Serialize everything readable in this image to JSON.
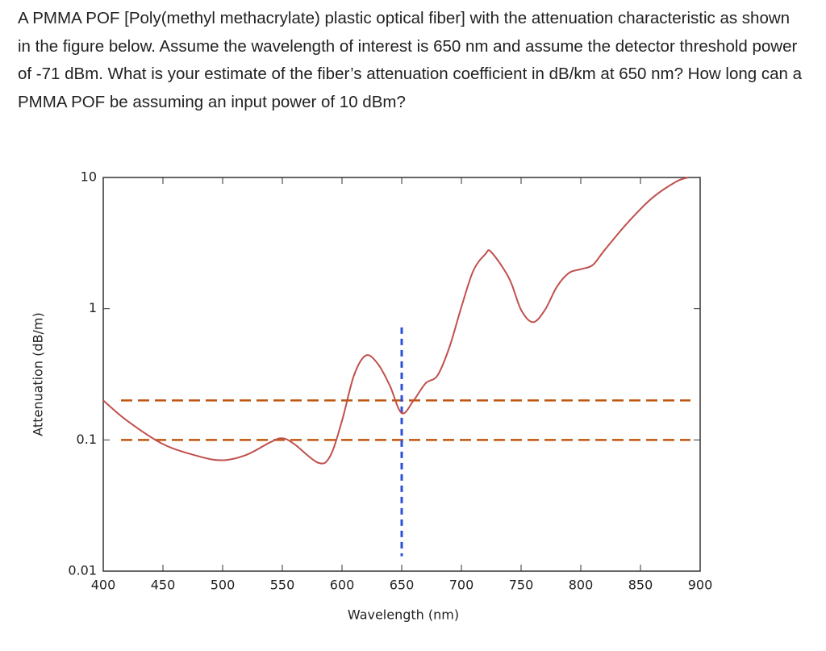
{
  "question": "A PMMA POF [Poly(methyl methacrylate) plastic optical fiber] with the attenuation characteristic as shown in the figure below. Assume the wavelength of interest is 650 nm and assume the detector threshold power of -71 dBm. What is your estimate of the fiber’s attenuation coefficient in dB/km at 650 nm? How long can a PMMA POF be assuming an input power of 10 dBm?",
  "chart_data": {
    "type": "line",
    "xlabel": "Wavelength (nm)",
    "ylabel": "Attenuation (dB/m)",
    "x": [
      400,
      420,
      450,
      480,
      500,
      520,
      540,
      550,
      560,
      580,
      590,
      600,
      610,
      620,
      630,
      640,
      650,
      660,
      670,
      680,
      690,
      700,
      710,
      720,
      725,
      740,
      750,
      760,
      770,
      780,
      790,
      800,
      810,
      820,
      840,
      860,
      880,
      890
    ],
    "values": [
      0.2,
      0.14,
      0.093,
      0.075,
      0.07,
      0.077,
      0.096,
      0.103,
      0.093,
      0.067,
      0.075,
      0.14,
      0.31,
      0.44,
      0.38,
      0.26,
      0.16,
      0.2,
      0.27,
      0.31,
      0.51,
      1.03,
      1.95,
      2.6,
      2.7,
      1.7,
      0.98,
      0.79,
      0.98,
      1.47,
      1.87,
      2.0,
      2.15,
      2.8,
      4.6,
      7.0,
      9.3,
      10
    ],
    "color": "#c0504d",
    "xlim": [
      400,
      900
    ],
    "xticks": [
      400,
      450,
      500,
      550,
      600,
      650,
      700,
      750,
      800,
      850,
      900
    ],
    "ylim": [
      0.01,
      10
    ],
    "yticks": [
      0.01,
      0.1,
      1,
      10
    ],
    "log_y": true,
    "hlines": [
      0.2,
      0.1
    ],
    "hline_color": "#c0560f",
    "vline": {
      "x": 650,
      "ymin": 0.013,
      "ymax": 0.72,
      "color": "#2b4fd6"
    }
  }
}
